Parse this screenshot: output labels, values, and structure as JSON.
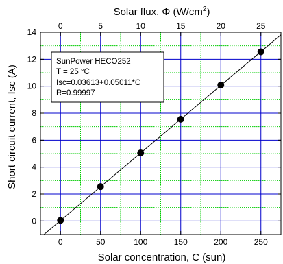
{
  "chart_data": {
    "type": "scatter",
    "xlabel": "Solar concentration, C (sun)",
    "ylabel": "Short circuit current, Isc (A)",
    "top_axis": {
      "label_base": "Solar flux, Φ (W/cm",
      "label_sup": "2",
      "label_close": ")",
      "tick_labels": [
        "0",
        "5",
        "10",
        "15",
        "20",
        "25"
      ],
      "tick_positions_c": [
        0,
        50,
        100,
        150,
        200,
        250
      ]
    },
    "xlim": [
      -25,
      275
    ],
    "ylim": [
      -1,
      14
    ],
    "x_ticks": [
      0,
      50,
      100,
      150,
      200,
      250
    ],
    "y_ticks": [
      0,
      2,
      4,
      6,
      8,
      10,
      12,
      14
    ],
    "grid": true,
    "legend_position": "top-left",
    "legend_lines": [
      "SunPower HECO252",
      "T = 25 °C",
      "Isc=0.03613+0.05011*C",
      "R=0.99997"
    ],
    "series": [
      {
        "type": "scatter",
        "x": [
          0,
          50,
          100,
          150,
          200,
          250
        ],
        "y": [
          0.05,
          2.55,
          5.05,
          7.55,
          10.08,
          12.55
        ]
      }
    ],
    "fit": {
      "intercept": 0.03613,
      "slope": 0.05011
    },
    "colors": {
      "major_grid": "#0000cc",
      "minor_grid": "#00cc00",
      "line": "#000000",
      "marker": "#000000"
    }
  }
}
